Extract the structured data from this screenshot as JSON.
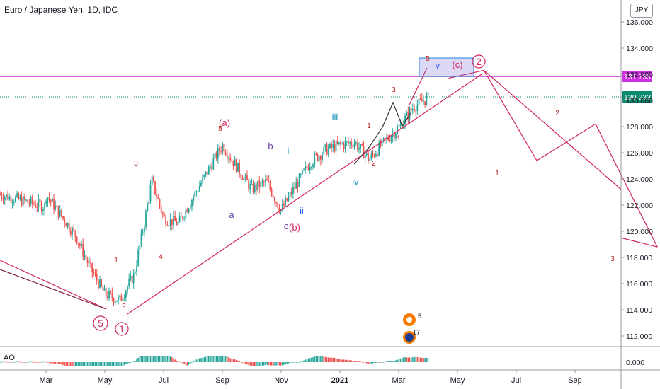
{
  "title": "Euro / Japanese Yen, 1D, IDC",
  "currency": "JPY",
  "indicator_label": "AO",
  "colors": {
    "up": "#26a69a",
    "down": "#ef5350",
    "wave_pink": "#d2245a",
    "level_magenta": "#cc2ee0",
    "label_blue": "#2962ff",
    "label_purple": "#6a3da8",
    "label_teal": "#1b8fb8",
    "label_red": "#b71c1c",
    "current_price": "#0d8a6e"
  },
  "chart_data": {
    "type": "candlestick",
    "ylim": [
      110.5,
      137.5
    ],
    "y_ticks": [
      "136.000",
      "134.000",
      "132.000",
      "130.000",
      "128.000",
      "126.000",
      "124.000",
      "122.000",
      "120.000",
      "118.000",
      "116.000",
      "114.000",
      "112.000"
    ],
    "x_ticks": [
      "Mar",
      "May",
      "Jul",
      "Sep",
      "Nov",
      "2021",
      "Mar",
      "May",
      "Jul",
      "Sep"
    ],
    "resistance_level": "131.735",
    "current_price": "130.233",
    "ao_axis_label": "0.000",
    "target_box_label": "v",
    "candle_path_month_close": [
      [
        0.0,
        122.8
      ],
      [
        1.0,
        119.7
      ],
      [
        1.5,
        117.2
      ],
      [
        2.0,
        115.2
      ],
      [
        2.5,
        114.7
      ],
      [
        3.0,
        116.7
      ],
      [
        3.4,
        121.3
      ],
      [
        3.6,
        123.9
      ],
      [
        4.0,
        121.0
      ],
      [
        4.5,
        120.6
      ],
      [
        5.0,
        122.6
      ],
      [
        5.5,
        124.6
      ],
      [
        6.0,
        126.6
      ],
      [
        6.5,
        124.9
      ],
      [
        7.0,
        123.2
      ],
      [
        7.5,
        123.8
      ],
      [
        8.0,
        121.6
      ],
      [
        8.5,
        123.5
      ],
      [
        9.0,
        125.3
      ],
      [
        9.5,
        126.2
      ],
      [
        10.0,
        126.6
      ],
      [
        10.5,
        126.8
      ],
      [
        11.0,
        125.5
      ],
      [
        11.5,
        126.8
      ],
      [
        12.0,
        127.9
      ],
      [
        12.5,
        129.5
      ],
      [
        13.0,
        130.2
      ]
    ],
    "wave_projection": [
      [
        13.7,
        131.7
      ],
      [
        14.9,
        132.3
      ],
      [
        16.7,
        125.4
      ],
      [
        18.7,
        128.2
      ],
      [
        20.8,
        118.8
      ]
    ],
    "annotations": [
      {
        "label": "(a)",
        "color": "wave_pink"
      },
      {
        "label": "5",
        "color": "label_red"
      },
      {
        "label": "3",
        "color": "label_red"
      },
      {
        "label": "4",
        "color": "label_red"
      },
      {
        "label": "1",
        "color": "label_red"
      },
      {
        "label": "2",
        "color": "label_red"
      },
      {
        "label": "b",
        "color": "label_purple"
      },
      {
        "label": "a",
        "color": "label_purple"
      },
      {
        "label": "c",
        "color": "label_purple"
      },
      {
        "label": "(b)",
        "color": "wave_pink"
      },
      {
        "label": "i",
        "color": "label_teal"
      },
      {
        "label": "ii",
        "color": "label_blue"
      },
      {
        "label": "iii",
        "color": "label_teal"
      },
      {
        "label": "iv",
        "color": "label_teal"
      },
      {
        "label": "1",
        "color": "label_red"
      },
      {
        "label": "2",
        "color": "label_red"
      },
      {
        "label": "3",
        "color": "label_red"
      },
      {
        "label": "4",
        "color": "label_red"
      },
      {
        "label": "5",
        "color": "label_red"
      },
      {
        "label": "(c)",
        "color": "wave_pink"
      },
      {
        "label": "1",
        "color": "label_red"
      },
      {
        "label": "2",
        "color": "label_red"
      },
      {
        "label": "3",
        "color": "label_red"
      }
    ],
    "circled_labels": [
      "5",
      "1",
      "2"
    ],
    "badge": {
      "top": "5",
      "bottom": "17"
    }
  }
}
